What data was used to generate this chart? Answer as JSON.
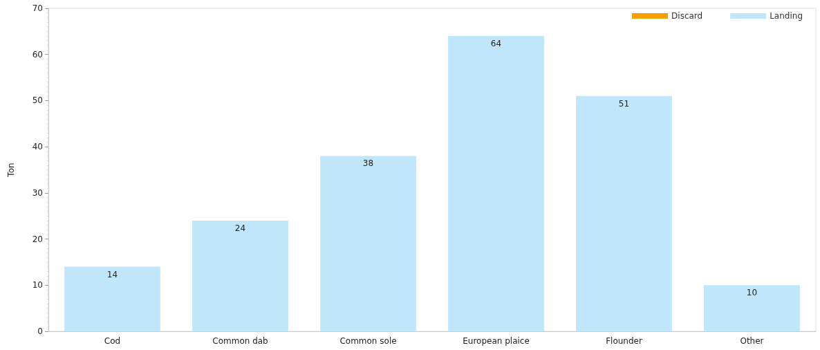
{
  "chart_data": {
    "type": "bar",
    "ylabel": "Ton",
    "categories": [
      "Cod",
      "Common dab",
      "Common sole",
      "European plaice",
      "Flounder",
      "Other"
    ],
    "series": [
      {
        "name": "Discard",
        "color": "#f5a000",
        "values": [
          null,
          null,
          null,
          null,
          null,
          null
        ]
      },
      {
        "name": "Landing",
        "color": "#bfe6fa",
        "values": [
          14,
          24,
          38,
          64,
          51,
          10
        ]
      }
    ],
    "stacked": true,
    "ylim": [
      0,
      70
    ],
    "yticks": [
      0,
      10,
      20,
      30,
      40,
      50,
      60,
      70
    ],
    "grid": false,
    "legend": "top right",
    "data_labels": true
  }
}
